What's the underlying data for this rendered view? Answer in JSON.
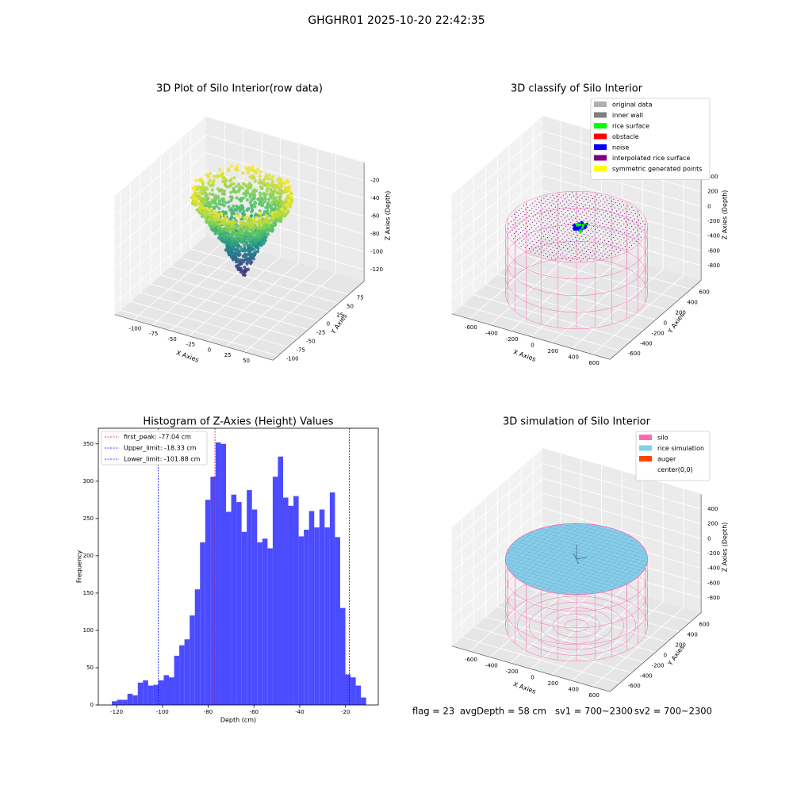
{
  "suptitle": "GHGHR01 2025-10-20 22:42:35",
  "footer": [
    "flag = 23",
    "avgDepth = 58 cm",
    "sv1 = 700~2300",
    "sv2 = 700~2300"
  ],
  "chart_data": [
    {
      "type": "scatter3d",
      "title": "3D Plot of Silo Interior(row data)",
      "xlabel": "X Axies",
      "ylabel": "Y Axies",
      "zlabel": "Z Axies (Depth)",
      "xlim": [
        -125,
        88
      ],
      "ylim": [
        -113,
        113
      ],
      "zlim": [
        -133,
        0
      ],
      "xticks": [
        -100,
        -75,
        -50,
        -25,
        0,
        25,
        50
      ],
      "yticks": [
        -100,
        -75,
        -50,
        -25,
        0,
        25,
        50,
        75
      ],
      "zticks": [
        -120,
        -100,
        -80,
        -60,
        -40,
        -20
      ],
      "colormap": "viridis"
    },
    {
      "type": "classify3d",
      "title": "3D classify of Silo Interior",
      "xlabel": "X Axies",
      "ylabel": "Y Axies",
      "zlabel": "Z Axies (Depth)",
      "xlim": [
        -770,
        770
      ],
      "ylim": [
        -770,
        770
      ],
      "zlim": [
        -1000,
        600
      ],
      "xticks": [
        -600,
        -400,
        -200,
        0,
        200,
        400,
        600
      ],
      "yticks": [
        -600,
        -400,
        -200,
        0,
        200,
        400,
        600
      ],
      "zticks": [
        -800,
        -600,
        -400,
        -200,
        0,
        200,
        400
      ],
      "legend_loc": "upper right",
      "legend": [
        {
          "name": "original data",
          "color": "#b0b0b0"
        },
        {
          "name": "inner wall",
          "color": "#808080"
        },
        {
          "name": "rice surface",
          "color": "#00ff00"
        },
        {
          "name": "obstacle",
          "color": "#ff0000"
        },
        {
          "name": "noise",
          "color": "#0000ff"
        },
        {
          "name": "interpolated rice surface",
          "color": "#800080"
        },
        {
          "name": "symmetric generated points",
          "color": "#ffff00"
        }
      ]
    },
    {
      "type": "histogram",
      "title": "Histogram of Z-Axies (Height) Values",
      "xlabel": "Depth (cm)",
      "ylabel": "Frequency",
      "color": "#4b4bff",
      "xlim": [
        -128,
        -5.7
      ],
      "ylim": [
        0,
        371
      ],
      "xticks": [
        -120,
        -100,
        -80,
        -60,
        -40,
        -20
      ],
      "yticks": [
        0,
        50,
        100,
        150,
        200,
        250,
        300,
        350
      ],
      "bins": [
        -122.1,
        -119.83,
        -117.57,
        -115.3,
        -113.03,
        -110.76,
        -108.5,
        -106.23,
        -103.96,
        -101.69,
        -99.43,
        -97.16,
        -94.89,
        -92.63,
        -90.36,
        -88.09,
        -85.82,
        -83.56,
        -81.29,
        -79.02,
        -76.75,
        -74.49,
        -72.22,
        -69.95,
        -67.68,
        -65.42,
        -63.15,
        -60.88,
        -58.62,
        -56.35,
        -54.08,
        -51.81,
        -49.55,
        -47.28,
        -45.01,
        -42.74,
        -40.48,
        -38.21,
        -35.94,
        -33.68,
        -31.41,
        -29.14,
        -26.87,
        -24.61,
        -22.34,
        -20.07,
        -17.8,
        -15.54,
        -13.27,
        -11.0
      ],
      "values": [
        5,
        7,
        7,
        15,
        13,
        30,
        33,
        26,
        27,
        33,
        40,
        37,
        66,
        80,
        88,
        120,
        155,
        218,
        275,
        306,
        352,
        350,
        259,
        282,
        272,
        232,
        288,
        262,
        218,
        223,
        210,
        306,
        333,
        278,
        267,
        280,
        226,
        235,
        260,
        238,
        262,
        238,
        285,
        225,
        130,
        41,
        37,
        26,
        10
      ],
      "legend_loc": "upper left",
      "lines": [
        {
          "label": "first_peak: -77.04 cm",
          "value": -77.04,
          "color": "#ff0000"
        },
        {
          "label": "Upper_limit: -18.33 cm",
          "value": -18.33,
          "color": "#0000ff"
        },
        {
          "label": "Lower_limit: -101.88 cm",
          "value": -101.88,
          "color": "#0000ff"
        }
      ]
    },
    {
      "type": "simulation3d",
      "title": "3D simulation of Silo Interior",
      "xlabel": "X Axies",
      "ylabel": "Y Axies",
      "zlabel": "Z Axies (Depth)",
      "xlim": [
        -770,
        770
      ],
      "ylim": [
        -770,
        770
      ],
      "zlim": [
        -1000,
        600
      ],
      "xticks": [
        -600,
        -400,
        -200,
        0,
        200,
        400,
        600
      ],
      "yticks": [
        -600,
        -400,
        -200,
        0,
        200,
        400,
        600
      ],
      "zticks": [
        -800,
        -600,
        -400,
        -200,
        0,
        200,
        400
      ],
      "legend_loc": "upper right",
      "legend": [
        {
          "name": "silo",
          "color": "#ff69b4"
        },
        {
          "name": "rice simulation",
          "color": "#87ceeb"
        },
        {
          "name": "auger",
          "color": "#ff4500"
        },
        {
          "name": "center(0,0)",
          "color": "#ffffff"
        }
      ]
    }
  ]
}
